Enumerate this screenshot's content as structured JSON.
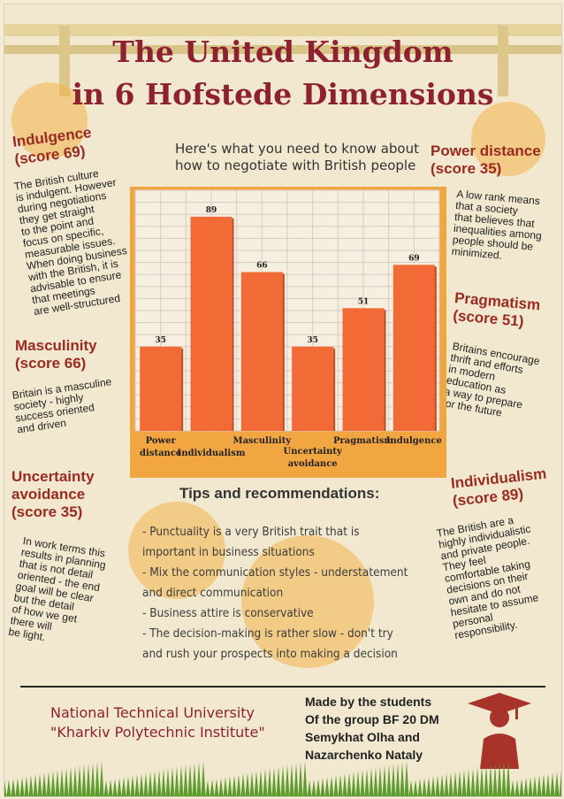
{
  "title": {
    "line1": "The United Kingdom",
    "line2": "in 6 Hofstede Dimensions"
  },
  "intro": {
    "line1": "Here's what you need to know about",
    "line2": "how to negotiate with British people"
  },
  "indulgence": {
    "heading1": "Indulgence",
    "heading2": "(score 69)",
    "lines": [
      "The British culture",
      "is indulgent. However",
      "during negotiations",
      "they get straight",
      "to the point and",
      "focus on specific,",
      "measurable issues.",
      "When doing business",
      "with the British, it is",
      "advisable to ensure",
      "that meetings",
      "are well-structured"
    ]
  },
  "masculinity": {
    "heading1": "Masculinity",
    "heading2": "(score 66)",
    "lines": [
      "Britain is a masculine",
      "society - highly",
      "success oriented",
      "and driven"
    ]
  },
  "uncertainty": {
    "heading1": "Uncertainty",
    "heading2": "avoidance",
    "heading3": "(score 35)",
    "lines": [
      "In work terms this",
      "results in planning",
      "that is not detail",
      "oriented - the end",
      "goal will be clear",
      "but the detail",
      "of how we get",
      "there will",
      "be light."
    ]
  },
  "power": {
    "heading1": "Power distance",
    "heading2": "(score 35)",
    "lines": [
      "A low rank means",
      "that a society",
      "that believes that",
      "inequalities among",
      "people should be",
      "minimized."
    ]
  },
  "pragmatism": {
    "heading1": "Pragmatism",
    "heading2": "(score 51)",
    "lines": [
      "Britains encourage",
      "thrift and efforts",
      "in modern",
      "education as",
      "a way to prepare",
      "for the future"
    ]
  },
  "individualism": {
    "heading1": "Individualism",
    "heading2": "(score 89)",
    "lines": [
      "The British are a",
      "highly individualistic",
      "and private people.",
      "They feel",
      "comfortable taking",
      "decisions on their",
      "own and do not",
      "hesitate to assume",
      "personal",
      "responsibility."
    ]
  },
  "chart_data": {
    "type": "bar",
    "categories": [
      "Power distance",
      "Individualism",
      "Masculinity",
      "Uncertainty avoidance",
      "Pragmatism",
      "Indulgence"
    ],
    "category_lines": [
      [
        "Power",
        "distance"
      ],
      [
        "Individualism"
      ],
      [
        "Masculinity"
      ],
      [
        "Uncertainty",
        "avoidance"
      ],
      [
        "Pragmatism"
      ],
      [
        "Indulgence"
      ]
    ],
    "values": [
      35,
      89,
      66,
      35,
      51,
      69
    ],
    "ylim": [
      0,
      100
    ],
    "grid": true,
    "title": "",
    "xlabel": "",
    "ylabel": "",
    "bar_color": "#f26a35"
  },
  "tips": {
    "title": "Tips and recommendations:",
    "lines": [
      "- Punctuality is a very British trait that is",
      "important in business situations",
      "- Mix the communication styles - understatement",
      "and direct communication",
      "- Business attire is conservative",
      "- The decision-making is rather slow - don't try",
      "and rush your prospects into making a decision"
    ]
  },
  "footer": {
    "uni1": "National Technical University",
    "uni2": "\"Kharkiv Polytechnic Institute\"",
    "made": [
      "Made by the students",
      "Of the group BF 20 DM",
      "Semykhat Olha and",
      "Nazarchenko Nataly"
    ]
  },
  "colors": {
    "accent": "#9b2a22",
    "title": "#8e2130",
    "bar": "#f26a35",
    "chart_bg": "#f2a642",
    "circle": "#f3b54a"
  }
}
